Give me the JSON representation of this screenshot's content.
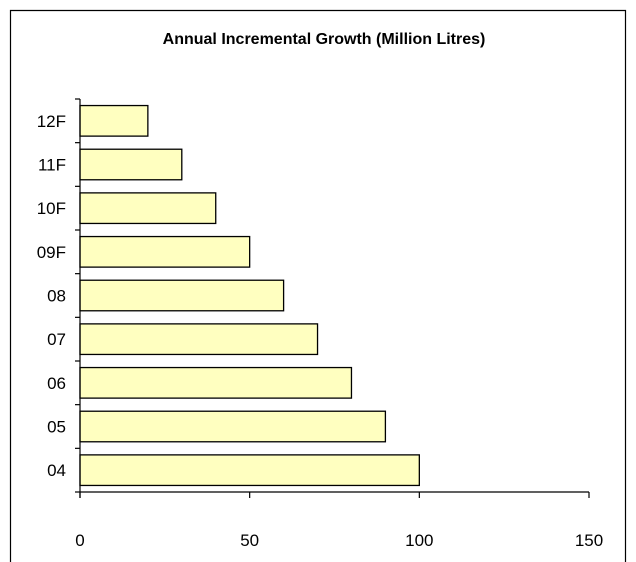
{
  "chart_data": {
    "type": "bar",
    "orientation": "horizontal",
    "title": "Annual Incremental Growth (Million Litres)",
    "xlabel": "",
    "ylabel": "",
    "categories": [
      "04",
      "05",
      "06",
      "07",
      "08",
      "09F",
      "10F",
      "11F",
      "12F"
    ],
    "values": [
      100,
      90,
      80,
      70,
      60,
      50,
      40,
      30,
      20
    ],
    "xlim": [
      0,
      150
    ],
    "xticks": [
      "0",
      "50",
      "100",
      "150"
    ],
    "grid": false,
    "legend": "none",
    "colors": {
      "bar_fill": "#ffffc0",
      "bar_stroke": "#000000",
      "axis": "#000000",
      "frame": "#000000",
      "background": "#ffffff"
    }
  }
}
